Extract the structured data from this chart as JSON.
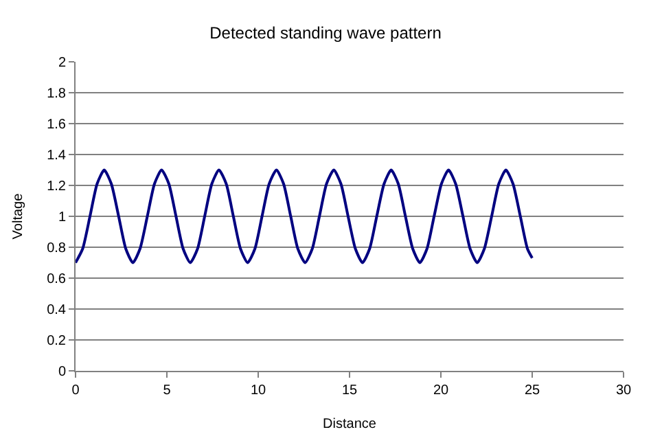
{
  "chart_data": {
    "type": "line",
    "title": "Detected standing wave pattern",
    "xlabel": "Distance",
    "ylabel": "Voltage",
    "x": [
      0,
      0.39,
      0.79,
      1.18,
      1.57,
      1.96,
      2.36,
      2.75,
      3.14,
      3.53,
      3.93,
      4.32,
      4.71,
      5.11,
      5.5,
      5.89,
      6.28,
      6.68,
      7.07,
      7.46,
      7.85,
      8.25,
      8.64,
      9.03,
      9.42,
      9.82,
      10.21,
      10.6,
      11.0,
      11.39,
      11.78,
      12.17,
      12.57,
      12.96,
      13.35,
      13.74,
      14.14,
      14.53,
      14.92,
      15.32,
      15.71,
      16.1,
      16.49,
      16.89,
      17.28,
      17.67,
      18.06,
      18.46,
      18.85,
      19.24,
      19.63,
      20.03,
      20.42,
      20.81,
      21.21,
      21.6,
      21.99,
      22.38,
      22.78,
      23.17,
      23.56,
      23.95,
      24.35,
      24.74,
      25
    ],
    "series": [
      {
        "color": "#000080",
        "values": [
          0.7,
          0.79,
          1.0,
          1.21,
          1.3,
          1.21,
          1.0,
          0.79,
          0.7,
          0.79,
          1.0,
          1.21,
          1.3,
          1.21,
          1.0,
          0.79,
          0.7,
          0.79,
          1.0,
          1.21,
          1.3,
          1.21,
          1.0,
          0.79,
          0.7,
          0.79,
          1.0,
          1.21,
          1.3,
          1.21,
          1.0,
          0.79,
          0.7,
          0.79,
          1.0,
          1.21,
          1.3,
          1.21,
          1.0,
          0.79,
          0.7,
          0.79,
          1.0,
          1.21,
          1.3,
          1.21,
          1.0,
          0.79,
          0.7,
          0.79,
          1.0,
          1.21,
          1.3,
          1.21,
          1.0,
          0.79,
          0.7,
          0.79,
          1.0,
          1.21,
          1.3,
          1.21,
          1.0,
          0.79,
          0.73
        ]
      }
    ],
    "xlim": [
      0,
      30
    ],
    "xticks": [
      0,
      5,
      10,
      15,
      20,
      25,
      30
    ],
    "ylim": [
      0,
      2
    ],
    "yticks": [
      0,
      0.2,
      0.4,
      0.6,
      0.8,
      1,
      1.2,
      1.4,
      1.6,
      1.8,
      2
    ],
    "grid": "y",
    "marker": "none",
    "line_style": "solid"
  }
}
